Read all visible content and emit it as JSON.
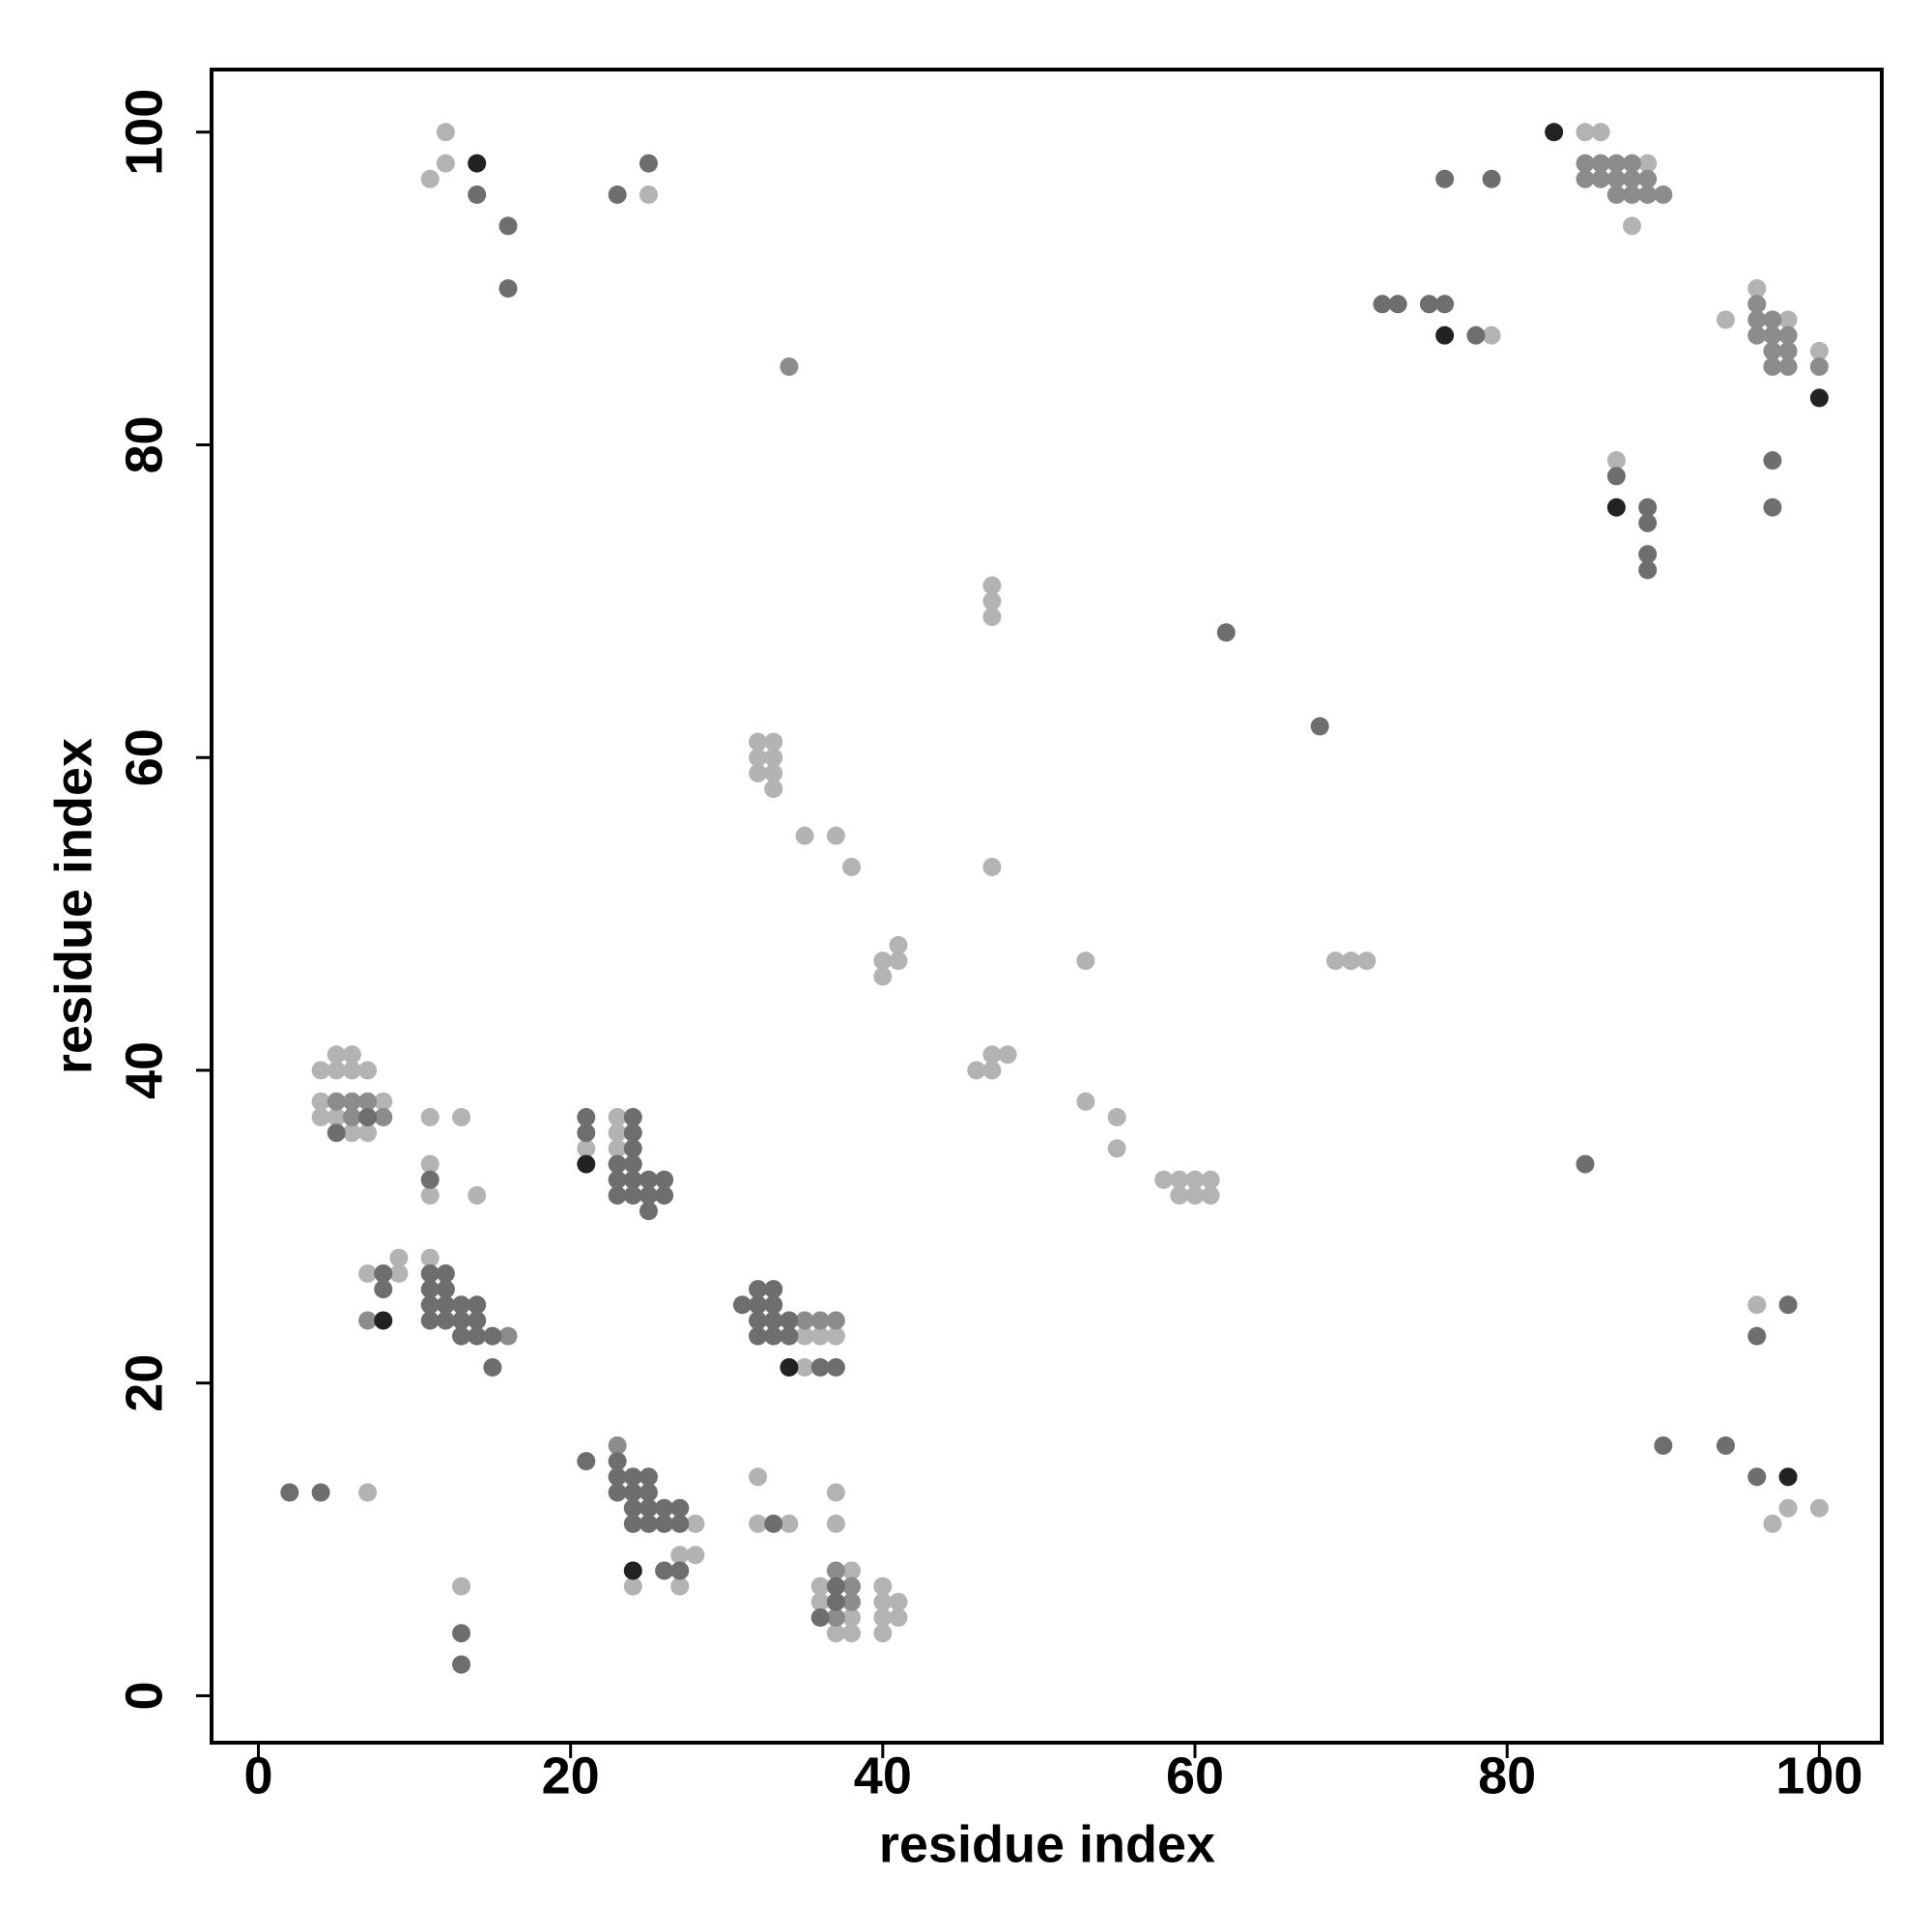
{
  "chart_data": {
    "type": "scatter",
    "xlabel": "residue index",
    "ylabel": "residue index",
    "xlim": [
      -3,
      104
    ],
    "ylim": [
      -3,
      104
    ],
    "xticks": [
      0,
      20,
      40,
      60,
      80,
      100
    ],
    "yticks": [
      0,
      20,
      40,
      60,
      80,
      100
    ],
    "grid": false,
    "series": [
      {
        "color": "#b3b3b3",
        "x": [
          12,
          11,
          12,
          25,
          85,
          86,
          89,
          88,
          79,
          94,
          96,
          98,
          100,
          87,
          47,
          47,
          47,
          32,
          33,
          32,
          33,
          32,
          33,
          33,
          35,
          37,
          38,
          47,
          40,
          41,
          41,
          40,
          53,
          69,
          70,
          71,
          46,
          47,
          47,
          48,
          53,
          55,
          55,
          58,
          59,
          60,
          61,
          59,
          60,
          61,
          5,
          6,
          4,
          5,
          6,
          7,
          4,
          8,
          4,
          5,
          6,
          7,
          11,
          13,
          11,
          11,
          14,
          21,
          23,
          23,
          23,
          7,
          9,
          9,
          11,
          35,
          36,
          37,
          35,
          96,
          98,
          100,
          97,
          7,
          13,
          28,
          27,
          28,
          24,
          27,
          32,
          32,
          34,
          37,
          37,
          38,
          36,
          36,
          38,
          37,
          38,
          40,
          40,
          41,
          40,
          41,
          40
        ],
        "y": [
          100,
          97,
          98,
          96,
          100,
          100,
          98,
          94,
          87,
          88,
          90,
          88,
          86,
          79,
          71,
          70,
          69,
          61,
          61,
          60,
          60,
          59,
          59,
          58,
          55,
          55,
          53,
          53,
          47,
          47,
          48,
          46,
          47,
          47,
          47,
          47,
          40,
          40,
          41,
          41,
          38,
          37,
          35,
          33,
          33,
          33,
          33,
          32,
          32,
          32,
          41,
          41,
          40,
          40,
          40,
          40,
          38,
          38,
          37,
          37,
          36,
          36,
          37,
          37,
          34,
          32,
          32,
          35,
          37,
          36,
          35,
          27,
          28,
          27,
          28,
          23,
          23,
          23,
          21,
          25,
          12,
          12,
          11,
          13,
          7,
          11,
          9,
          9,
          7,
          7,
          14,
          11,
          11,
          13,
          11,
          8,
          7,
          6,
          5,
          4,
          4,
          7,
          6,
          6,
          5,
          5,
          4
        ]
      },
      {
        "color": "#8c8c8c",
        "x": [
          34,
          85,
          86,
          87,
          88,
          85,
          86,
          87,
          88,
          89,
          87,
          88,
          89,
          90,
          96,
          96,
          97,
          96,
          97,
          98,
          97,
          98,
          97,
          98,
          100,
          5,
          6,
          7,
          6,
          8,
          7,
          16,
          35,
          36,
          37,
          23,
          37,
          38,
          38,
          37
        ],
        "y": [
          85,
          98,
          98,
          98,
          98,
          97,
          97,
          97,
          97,
          97,
          96,
          96,
          96,
          96,
          89,
          88,
          88,
          87,
          87,
          87,
          86,
          86,
          85,
          85,
          85,
          38,
          38,
          38,
          37,
          37,
          24,
          23,
          24,
          24,
          24,
          16,
          8,
          7,
          6,
          5
        ]
      },
      {
        "color": "#6e6e6e",
        "x": [
          14,
          16,
          16,
          23,
          25,
          76,
          79,
          72,
          73,
          75,
          76,
          78,
          87,
          89,
          89,
          89,
          89,
          97,
          97,
          62,
          68,
          85,
          7,
          5,
          11,
          21,
          21,
          23,
          23,
          23,
          24,
          24,
          24,
          24,
          24,
          24,
          25,
          25,
          25,
          26,
          26,
          8,
          8,
          11,
          11,
          11,
          11,
          12,
          12,
          12,
          12,
          13,
          13,
          13,
          14,
          14,
          14,
          15,
          15,
          31,
          32,
          33,
          32,
          33,
          32,
          33,
          34,
          32,
          33,
          34,
          36,
          37,
          98,
          96,
          90,
          94,
          96,
          2,
          4,
          13,
          13,
          21,
          23,
          23,
          23,
          24,
          25,
          24,
          25,
          24,
          25,
          26,
          27,
          24,
          25,
          26,
          27,
          26,
          27,
          33,
          37,
          37,
          36
        ],
        "y": [
          96,
          94,
          90,
          96,
          98,
          97,
          97,
          89,
          89,
          89,
          89,
          87,
          78,
          76,
          75,
          73,
          72,
          79,
          76,
          68,
          62,
          34,
          37,
          36,
          33,
          37,
          36,
          34,
          33,
          32,
          37,
          36,
          35,
          34,
          33,
          32,
          33,
          32,
          31,
          33,
          32,
          27,
          26,
          27,
          26,
          25,
          24,
          27,
          26,
          25,
          24,
          25,
          24,
          23,
          25,
          24,
          23,
          23,
          21,
          25,
          26,
          26,
          25,
          25,
          24,
          24,
          24,
          23,
          23,
          23,
          21,
          21,
          25,
          23,
          16,
          16,
          14,
          13,
          13,
          4,
          2,
          15,
          15,
          14,
          13,
          14,
          14,
          13,
          13,
          12,
          12,
          12,
          12,
          11,
          11,
          11,
          11,
          8,
          8,
          11,
          7,
          6,
          5
        ]
      },
      {
        "color": "#222222",
        "x": [
          14,
          83,
          76,
          100,
          87,
          21,
          8,
          34,
          98,
          24
        ],
        "y": [
          98,
          100,
          87,
          83,
          76,
          34,
          24,
          21,
          14,
          8
        ]
      }
    ]
  }
}
